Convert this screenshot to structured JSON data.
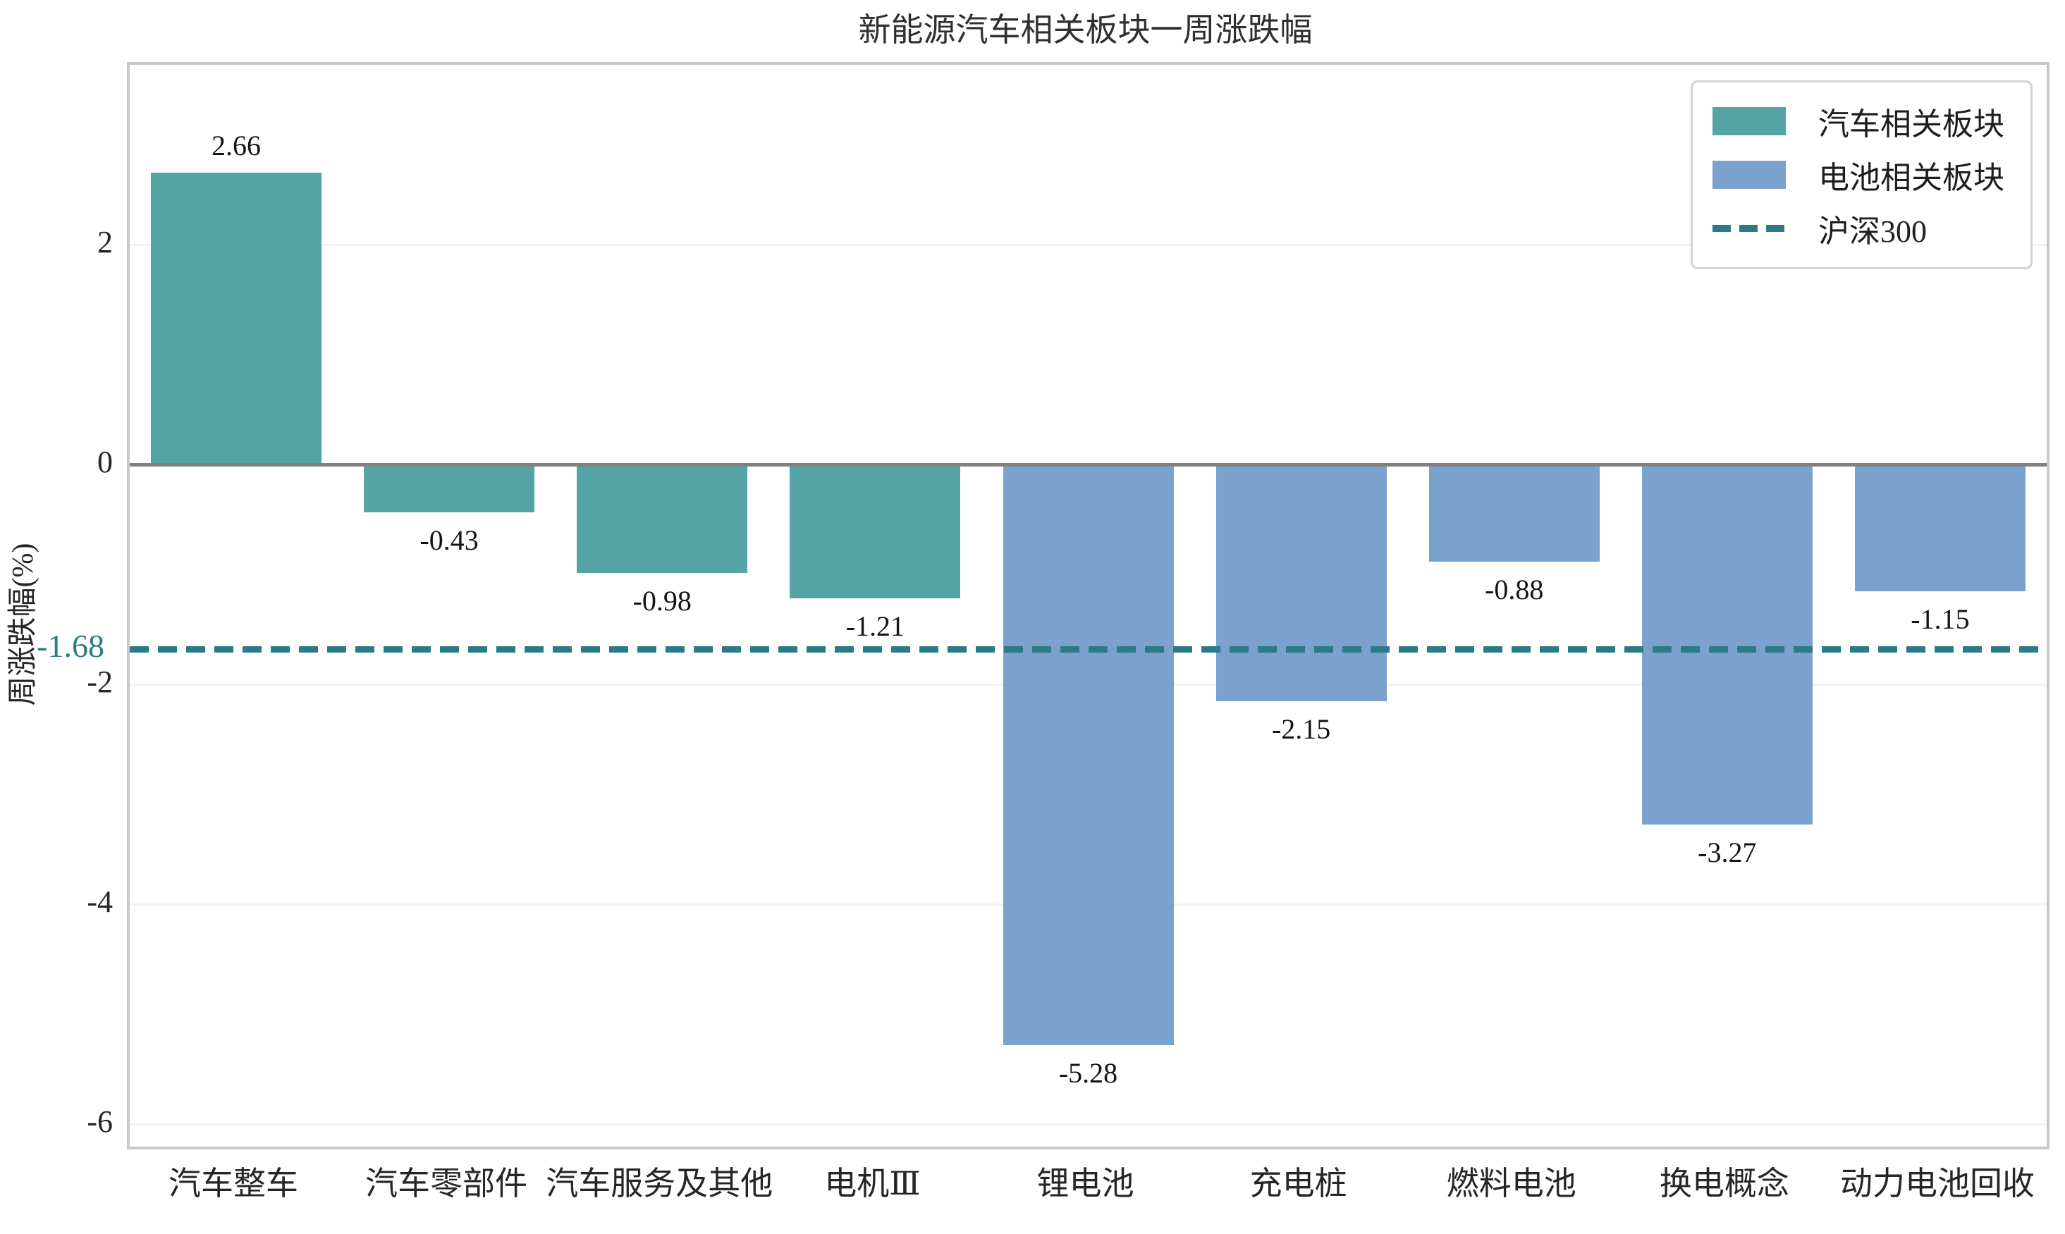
{
  "chart_data": {
    "type": "bar",
    "title": "新能源汽车相关板块一周涨跌幅",
    "ylabel": "周涨跌幅(%)",
    "xlabel": "",
    "categories": [
      "汽车整车",
      "汽车零部件",
      "汽车服务及其他",
      "电机Ⅲ",
      "锂电池",
      "充电桩",
      "燃料电池",
      "换电概念",
      "动力电池回收"
    ],
    "series": [
      {
        "name": "汽车相关板块",
        "color": "#54a4a5",
        "values": [
          2.66,
          -0.43,
          -0.98,
          -1.21,
          null,
          null,
          null,
          null,
          null
        ]
      },
      {
        "name": "电池相关板块",
        "color": "#7aa2cc",
        "values": [
          null,
          null,
          null,
          null,
          -5.28,
          -2.15,
          -0.88,
          -3.27,
          -1.15
        ]
      }
    ],
    "bar_values": [
      2.66,
      -0.43,
      -0.98,
      -1.21,
      -5.28,
      -2.15,
      -0.88,
      -3.27,
      -1.15
    ],
    "bar_groups": [
      0,
      0,
      0,
      0,
      1,
      1,
      1,
      1,
      1
    ],
    "value_labels": [
      "2.66",
      "-0.43",
      "-0.98",
      "-1.21",
      "-5.28",
      "-2.15",
      "-0.88",
      "-3.27",
      "-1.15"
    ],
    "reference_line": {
      "name": "沪深300",
      "value": -1.68,
      "annotation": "-1.68",
      "color": "#2b7a85",
      "style": "dashed"
    },
    "yticks": [
      2,
      0,
      -2,
      -4,
      -6
    ],
    "ylim": [
      -6.2,
      3.64
    ],
    "grid": true,
    "legend_position": "upper right",
    "zero_line_color": "#808080",
    "grid_color": "#f2f2f2"
  }
}
